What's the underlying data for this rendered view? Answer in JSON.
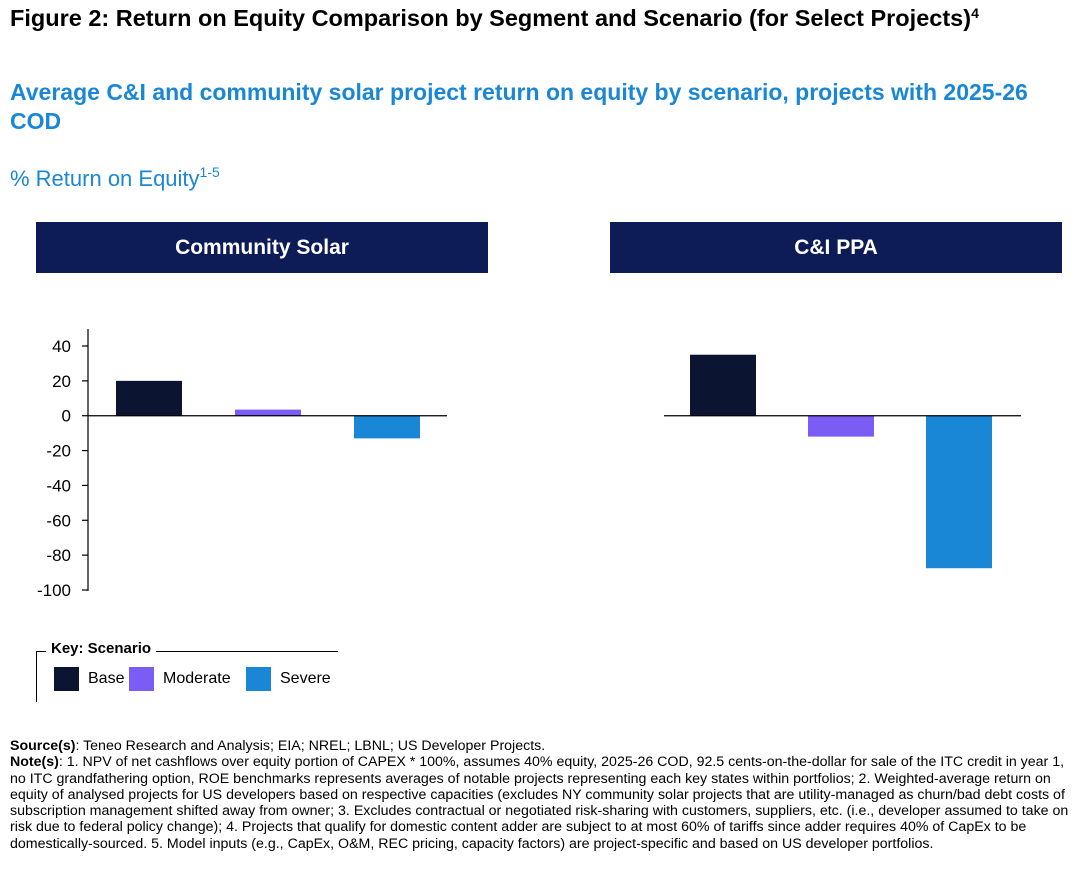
{
  "title": "Figure 2: Return on Equity Comparison by Segment and Scenario (for Select Projects)",
  "title_sup": "4",
  "subtitle": "Average C&I and community solar project return on equity by scenario, projects with 2025-26 COD",
  "ylabel": "% Return on Equity",
  "ylabel_sup": "1-5",
  "legend": {
    "title": "Key: Scenario",
    "items": [
      {
        "label": "Base",
        "color": "#0b1532"
      },
      {
        "label": "Moderate",
        "color": "#7b5cf5"
      },
      {
        "label": "Severe",
        "color": "#1a87d6"
      }
    ]
  },
  "chart_data": [
    {
      "type": "bar",
      "title": "Community Solar",
      "categories": [
        "Base",
        "Moderate",
        "Severe"
      ],
      "values": [
        20,
        3.5,
        -13
      ],
      "ylim": [
        -100,
        40
      ],
      "yticks": [
        40,
        20,
        0,
        -20,
        -40,
        -60,
        -80,
        -100
      ],
      "grid": false,
      "legend": "bottom-left"
    },
    {
      "type": "bar",
      "title": "C&I PPA",
      "categories": [
        "Base",
        "Moderate",
        "Severe"
      ],
      "values": [
        35,
        -12,
        -87.5
      ],
      "ylim": [
        -100,
        40
      ],
      "grid": false,
      "legend": "bottom-left"
    }
  ],
  "footnotes": {
    "source_label": "Source(s)",
    "source_text": ": Teneo Research and Analysis; EIA; NREL; LBNL; US Developer Projects.",
    "notes_label": "Note(s)",
    "notes_text": ": 1. NPV of net cashflows over equity portion of CAPEX * 100%, assumes 40% equity, 2025-26 COD, 92.5 cents-on-the-dollar for sale of the ITC credit in year 1, no ITC grandfathering option, ROE benchmarks represents averages of notable projects representing each key states within portfolios; 2. Weighted-average return on equity of analysed projects for US developers based on respective capacities (excludes NY community solar projects that are utility-managed as churn/bad debt costs of subscription management shifted away from owner; 3. Excludes contractual or negotiated risk-sharing with customers, suppliers, etc. (i.e., developer assumed to take on risk due to federal policy change); 4. Projects that qualify for domestic content adder are subject to at most 60% of tariffs since adder requires 40% of CapEx to be domestically-sourced. 5. Model inputs (e.g., CapEx, O&M, REC pricing, capacity factors) are project-specific and based on US developer portfolios."
  }
}
